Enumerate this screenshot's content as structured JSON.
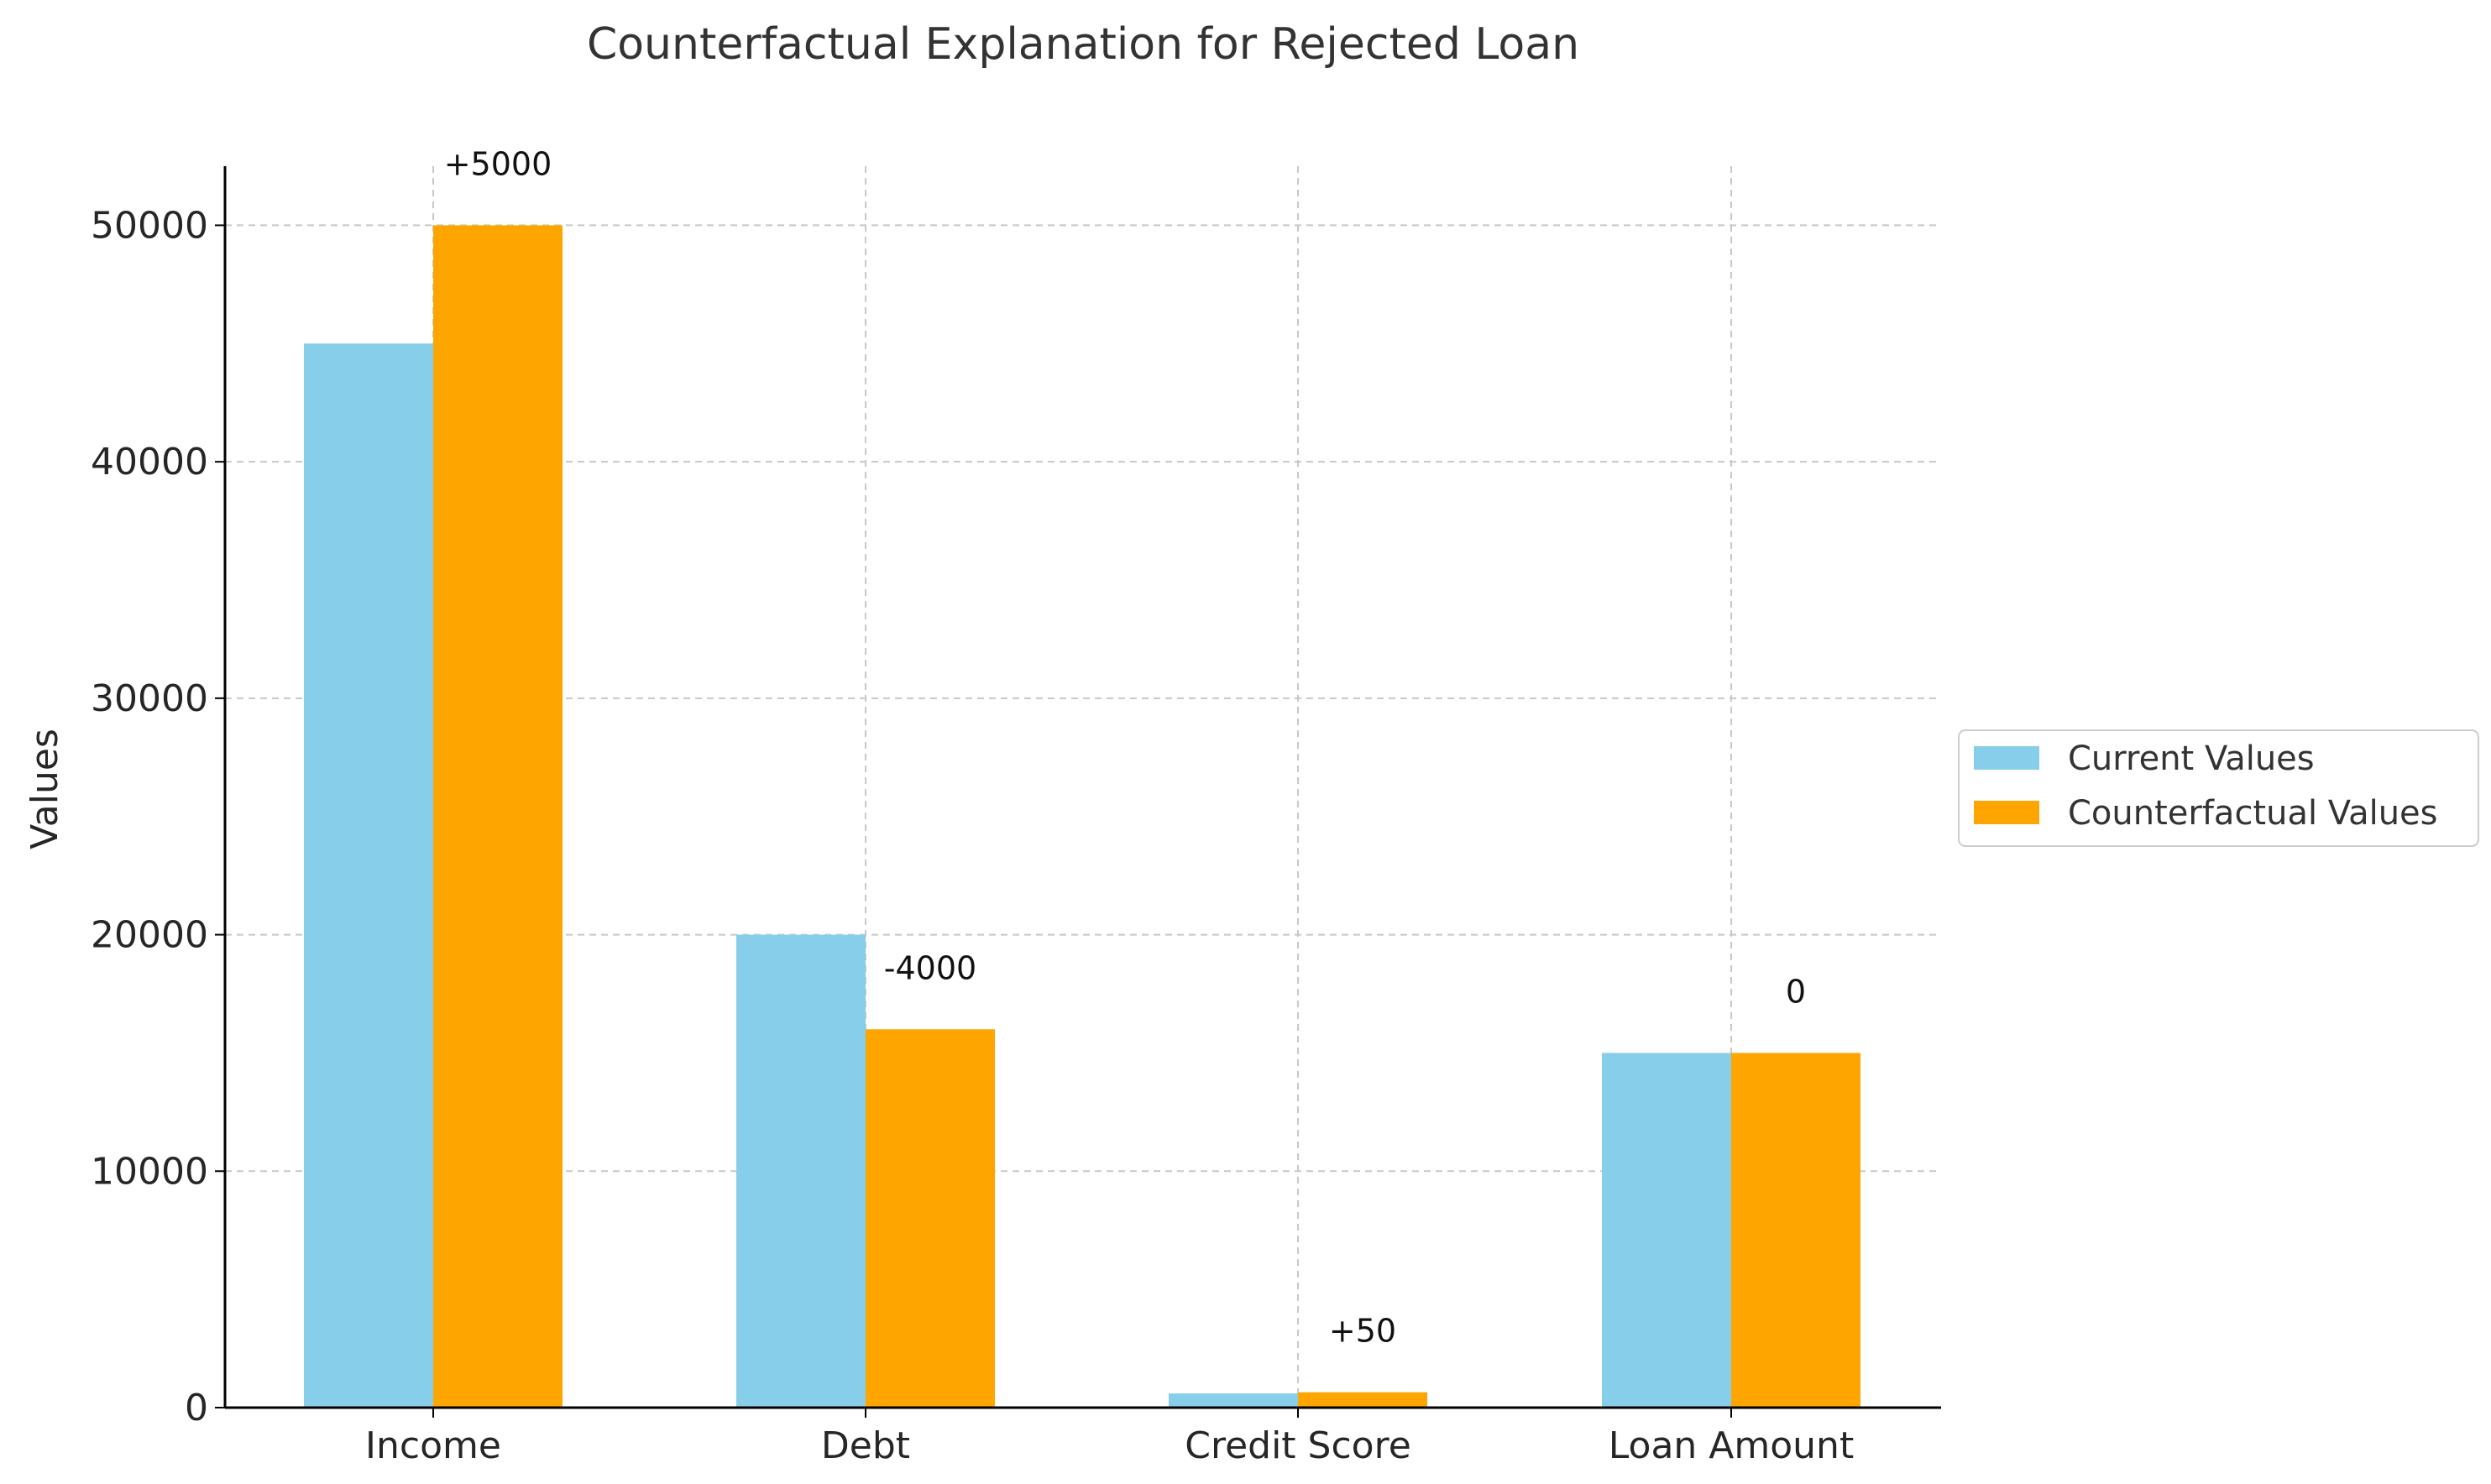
{
  "chart_data": {
    "type": "bar",
    "title": "Counterfactual Explanation for Rejected Loan",
    "xlabel": "",
    "ylabel": "Values",
    "categories": [
      "Income",
      "Debt",
      "Credit Score",
      "Loan Amount"
    ],
    "series": [
      {
        "name": "Current Values",
        "color": "#87CEEB",
        "values": [
          45000,
          20000,
          600,
          15000
        ]
      },
      {
        "name": "Counterfactual Values",
        "color": "#FFA500",
        "values": [
          50000,
          16000,
          650,
          15000
        ]
      }
    ],
    "annotations": [
      "+5000",
      "-4000",
      "+50",
      "0"
    ],
    "yticks": [
      0,
      10000,
      20000,
      30000,
      40000,
      50000
    ],
    "ylim": [
      0,
      52500
    ],
    "grid": true,
    "legend_position": "right, outside"
  }
}
